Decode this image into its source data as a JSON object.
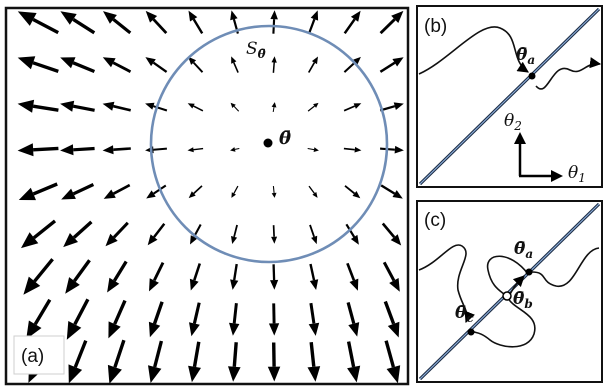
{
  "colors": {
    "frame": "#111111",
    "circle": "#6f8db6",
    "diagonal_dark": "#1c2c44",
    "diagonal_light": "#7c9ccc",
    "arrow": "#000000",
    "background": "#ffffff"
  },
  "panel_a": {
    "label": "(a)",
    "circle_label": "S",
    "circle_label_sub": "θ̄",
    "center_label": "θ̄"
  },
  "panel_b": {
    "label": "(b)",
    "point_label": "θ̄",
    "point_sub": "a",
    "axis_y_label": "θ",
    "axis_y_sub": "2",
    "axis_x_label": "θ",
    "axis_x_sub": "1"
  },
  "panel_c": {
    "label": "(c)",
    "point_a_label": "θ̄",
    "point_a_sub": "a",
    "point_b_label": "θ̄",
    "point_b_sub": "b",
    "point_c_label": "θ̄",
    "point_c_sub": "c"
  }
}
